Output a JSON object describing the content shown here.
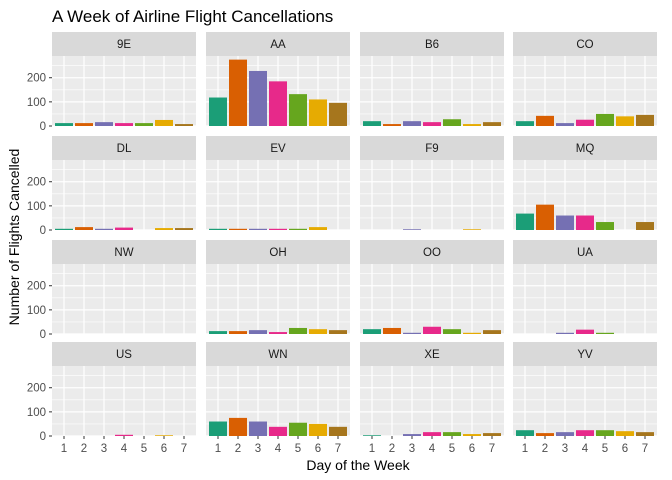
{
  "chart_data": {
    "type": "bar",
    "title": "A Week of Airline Flight Cancellations",
    "xlabel": "Day of the Week",
    "ylabel": "Number of Flights Cancelled",
    "x_ticks": [
      "1",
      "2",
      "3",
      "4",
      "5",
      "6",
      "7"
    ],
    "y_ticks": [
      0,
      100,
      200
    ],
    "ylim": [
      0,
      290
    ],
    "grid": true,
    "facets_layout": "4x4",
    "legend": "none",
    "day_colors": [
      "#1b9e77",
      "#d95f02",
      "#7570b3",
      "#e7298a",
      "#66a61e",
      "#e6ab02",
      "#a6761d"
    ],
    "panel_background": "#ebebeb",
    "strip_background": "#d9d9d9",
    "facets": [
      {
        "carrier": "9E",
        "values": [
          12,
          12,
          16,
          12,
          12,
          25,
          8
        ]
      },
      {
        "carrier": "AA",
        "values": [
          118,
          275,
          228,
          185,
          132,
          110,
          96
        ]
      },
      {
        "carrier": "B6",
        "values": [
          20,
          8,
          20,
          16,
          28,
          8,
          16
        ]
      },
      {
        "carrier": "CO",
        "values": [
          20,
          42,
          12,
          26,
          50,
          40,
          46
        ]
      },
      {
        "carrier": "DL",
        "values": [
          5,
          12,
          5,
          10,
          0,
          8,
          8
        ]
      },
      {
        "carrier": "EV",
        "values": [
          5,
          5,
          5,
          5,
          5,
          12,
          0
        ]
      },
      {
        "carrier": "F9",
        "values": [
          0,
          0,
          3,
          0,
          0,
          3,
          0
        ]
      },
      {
        "carrier": "MQ",
        "values": [
          68,
          105,
          60,
          60,
          33,
          0,
          33
        ]
      },
      {
        "carrier": "NW",
        "values": [
          0,
          0,
          0,
          0,
          0,
          0,
          0
        ]
      },
      {
        "carrier": "OH",
        "values": [
          12,
          12,
          16,
          8,
          25,
          20,
          16
        ]
      },
      {
        "carrier": "OO",
        "values": [
          20,
          25,
          5,
          30,
          20,
          5,
          16
        ]
      },
      {
        "carrier": "UA",
        "values": [
          0,
          0,
          5,
          18,
          5,
          0,
          0
        ]
      },
      {
        "carrier": "US",
        "values": [
          0,
          0,
          0,
          5,
          0,
          3,
          0
        ]
      },
      {
        "carrier": "WN",
        "values": [
          60,
          75,
          60,
          38,
          55,
          50,
          38
        ]
      },
      {
        "carrier": "XE",
        "values": [
          3,
          0,
          8,
          16,
          16,
          8,
          12
        ]
      },
      {
        "carrier": "YV",
        "values": [
          24,
          12,
          16,
          24,
          24,
          20,
          16
        ]
      }
    ]
  }
}
